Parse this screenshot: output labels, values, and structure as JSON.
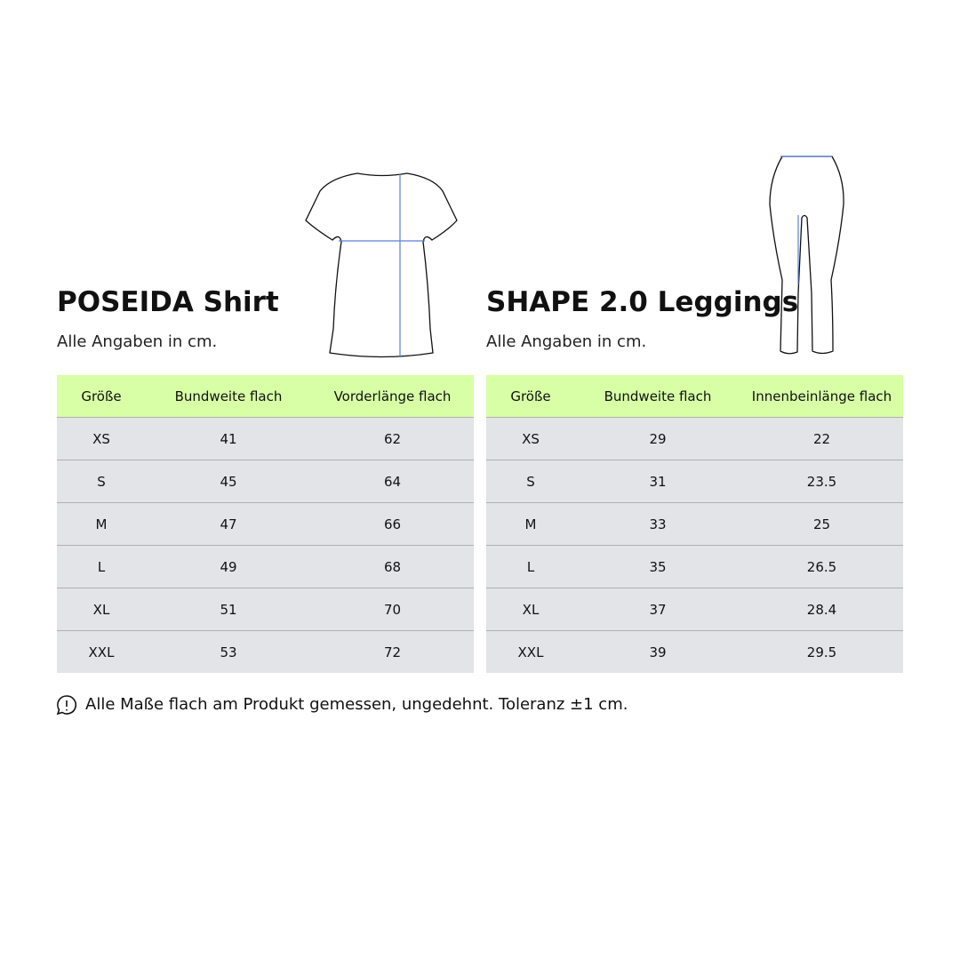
{
  "tables": [
    {
      "title": "POSEIDA Shirt",
      "subtitle": "Alle Angaben in cm.",
      "columns": [
        "Größe",
        "Bundweite flach",
        "Vorderlänge flach"
      ],
      "rows": [
        [
          "XS",
          41,
          62
        ],
        [
          "S",
          45,
          64
        ],
        [
          "M",
          47,
          66
        ],
        [
          "L",
          49,
          68
        ],
        [
          "XL",
          51,
          70
        ],
        [
          "XXL",
          53,
          72
        ]
      ]
    },
    {
      "title": "SHAPE 2.0 Leggings",
      "subtitle": "Alle Angaben in cm.",
      "columns": [
        "Größe",
        "Bundweite flach",
        "Innenbeinlänge flach"
      ],
      "rows": [
        [
          "XS",
          29,
          22
        ],
        [
          "S",
          31,
          23.5
        ],
        [
          "M",
          33,
          25
        ],
        [
          "L",
          35,
          26.5
        ],
        [
          "XL",
          37,
          28.4
        ],
        [
          "XXL",
          39,
          29.5
        ]
      ]
    }
  ],
  "note": "Alle Maße flach am Produkt gemessen, ungedehnt. Toleranz ±1 cm."
}
